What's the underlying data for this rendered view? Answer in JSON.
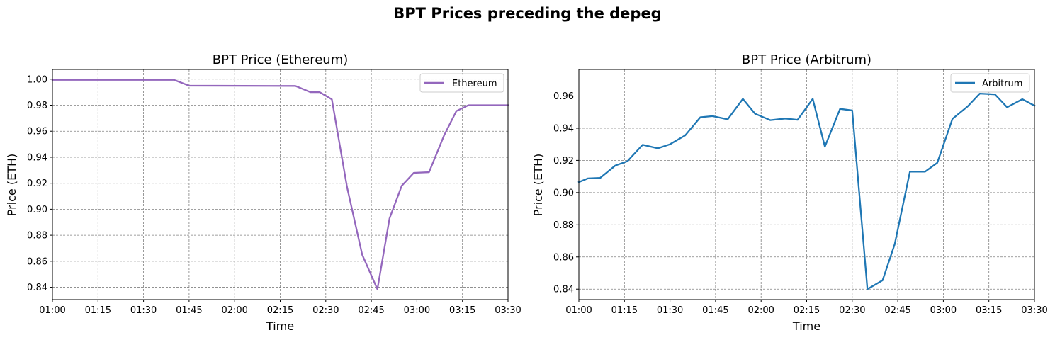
{
  "figure_title": "BPT Prices preceding the depeg",
  "chart_data": [
    {
      "type": "line",
      "title": "BPT Price (Ethereum)",
      "xlabel": "Time",
      "ylabel": "Price (ETH)",
      "x_ticks": [
        "01:00",
        "01:15",
        "01:30",
        "01:45",
        "02:00",
        "02:15",
        "02:30",
        "02:45",
        "03:00",
        "03:15",
        "03:30"
      ],
      "y_ticks": [
        "0.84",
        "0.86",
        "0.88",
        "0.90",
        "0.92",
        "0.94",
        "0.96",
        "0.98",
        "1.00"
      ],
      "xlim": [
        "01:00",
        "03:30"
      ],
      "ylim": [
        0.8305,
        1.0075
      ],
      "grid": true,
      "legend_position": "upper right",
      "series": [
        {
          "name": "Ethereum",
          "color": "#9467bd",
          "x": [
            "01:00",
            "01:40",
            "01:45",
            "02:20",
            "02:25",
            "02:28",
            "02:32",
            "02:37",
            "02:42",
            "02:47",
            "02:51",
            "02:55",
            "02:59",
            "03:04",
            "03:09",
            "03:13",
            "03:17",
            "03:22",
            "03:30"
          ],
          "y": [
            0.9995,
            0.9995,
            0.995,
            0.9948,
            0.99,
            0.99,
            0.9845,
            0.917,
            0.865,
            0.8385,
            0.893,
            0.918,
            0.928,
            0.9285,
            0.957,
            0.9755,
            0.98,
            0.98,
            0.98
          ]
        }
      ]
    },
    {
      "type": "line",
      "title": "BPT Price (Arbitrum)",
      "xlabel": "Time",
      "ylabel": "Price (ETH)",
      "x_ticks": [
        "01:00",
        "01:15",
        "01:30",
        "01:45",
        "02:00",
        "02:15",
        "02:30",
        "02:45",
        "03:00",
        "03:15",
        "03:30"
      ],
      "y_ticks": [
        "0.84",
        "0.86",
        "0.88",
        "0.90",
        "0.92",
        "0.94",
        "0.96"
      ],
      "xlim": [
        "01:00",
        "03:30"
      ],
      "ylim": [
        0.8335,
        0.9765
      ],
      "grid": true,
      "legend_position": "upper right",
      "series": [
        {
          "name": "Arbitrum",
          "color": "#1f77b4",
          "x": [
            "01:00",
            "01:03",
            "01:07",
            "01:12",
            "01:16",
            "01:21",
            "01:26",
            "01:30",
            "01:35",
            "01:40",
            "01:44",
            "01:49",
            "01:54",
            "01:58",
            "02:03",
            "02:08",
            "02:12",
            "02:17",
            "02:21",
            "02:26",
            "02:30",
            "02:35",
            "02:40",
            "02:44",
            "02:49",
            "02:54",
            "02:58",
            "03:03",
            "03:08",
            "03:12",
            "03:17",
            "03:21",
            "03:26",
            "03:30"
          ],
          "y": [
            0.9065,
            0.9088,
            0.9091,
            0.9168,
            0.9195,
            0.9297,
            0.9275,
            0.93,
            0.9355,
            0.9468,
            0.9475,
            0.9455,
            0.9582,
            0.949,
            0.945,
            0.946,
            0.9452,
            0.9582,
            0.9285,
            0.952,
            0.951,
            0.84,
            0.8455,
            0.868,
            0.913,
            0.913,
            0.9185,
            0.9458,
            0.9535,
            0.9615,
            0.961,
            0.953,
            0.958,
            0.954
          ]
        }
      ]
    }
  ]
}
